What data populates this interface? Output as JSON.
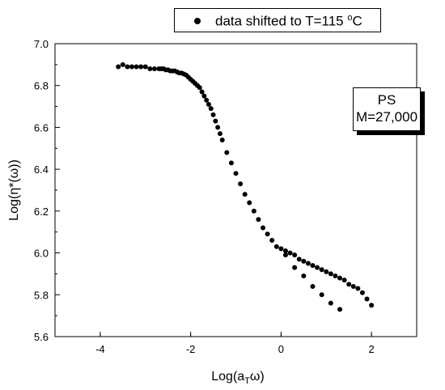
{
  "chart_data": {
    "type": "scatter",
    "title": "",
    "xlabel": {
      "base": "Log(a",
      "sub": "T",
      "tail": "ω)"
    },
    "ylabel": "Log(η*(ω))",
    "xlim": [
      -5,
      3
    ],
    "ylim": [
      5.6,
      7.0
    ],
    "xticks": [
      -4,
      -2,
      0,
      2
    ],
    "xtick_labels": [
      "-4",
      "-2",
      "0",
      "2"
    ],
    "yticks": [
      5.6,
      5.8,
      6.0,
      6.2,
      6.4,
      6.6,
      6.8,
      7.0
    ],
    "ytick_labels": [
      "5.6",
      "5.8",
      "6.0",
      "6.2",
      "6.4",
      "6.6",
      "6.8",
      "7.0"
    ],
    "grid": false,
    "legend": {
      "placement": "top",
      "label_main": "data shifted to T=115 ",
      "label_sup": "o",
      "label_tail": "C"
    },
    "annotation": {
      "line1": "PS",
      "line2": "M=27,000"
    },
    "marker_color": "#000000",
    "series": [
      {
        "x": [
          -3.6,
          -3.5,
          -3.4,
          -3.3,
          -3.2,
          -3.1,
          -3.0,
          -2.9,
          -2.8,
          -2.7,
          -2.65,
          -2.6,
          -2.55,
          -2.5,
          -2.45,
          -2.4,
          -2.35,
          -2.3,
          -2.25,
          -2.2,
          -2.15,
          -2.1,
          -2.05,
          -2.0,
          -1.95,
          -1.9,
          -1.85,
          -1.8,
          -1.75,
          -1.7,
          -1.65,
          -1.6,
          -1.55,
          -1.5,
          -1.45,
          -1.4,
          -1.35,
          -1.3,
          -1.2,
          -1.1,
          -1.0,
          -0.9,
          -0.8,
          -0.7,
          -0.6,
          -0.5,
          -0.4,
          -0.3,
          -0.2,
          -0.1,
          0.0,
          0.1,
          0.2,
          0.3,
          0.4,
          0.5,
          0.6,
          0.7,
          0.8,
          0.9,
          1.0,
          1.1,
          1.2,
          1.3,
          1.4,
          1.5,
          1.6,
          1.7,
          1.8,
          1.9,
          2.0,
          0.1,
          0.3,
          0.5,
          0.7,
          0.9,
          1.1,
          1.3
        ],
        "y": [
          6.89,
          6.9,
          6.89,
          6.89,
          6.89,
          6.89,
          6.89,
          6.88,
          6.88,
          6.88,
          6.88,
          6.88,
          6.875,
          6.875,
          6.87,
          6.87,
          6.87,
          6.865,
          6.86,
          6.86,
          6.855,
          6.85,
          6.84,
          6.83,
          6.82,
          6.81,
          6.8,
          6.79,
          6.77,
          6.75,
          6.73,
          6.71,
          6.69,
          6.66,
          6.63,
          6.6,
          6.57,
          6.54,
          6.48,
          6.43,
          6.38,
          6.33,
          6.28,
          6.24,
          6.2,
          6.16,
          6.12,
          6.09,
          6.06,
          6.03,
          6.02,
          6.01,
          6.0,
          5.99,
          5.97,
          5.96,
          5.95,
          5.94,
          5.93,
          5.92,
          5.91,
          5.9,
          5.89,
          5.88,
          5.87,
          5.85,
          5.84,
          5.83,
          5.81,
          5.78,
          5.75,
          5.99,
          5.93,
          5.89,
          5.84,
          5.8,
          5.76,
          5.73
        ]
      }
    ]
  }
}
